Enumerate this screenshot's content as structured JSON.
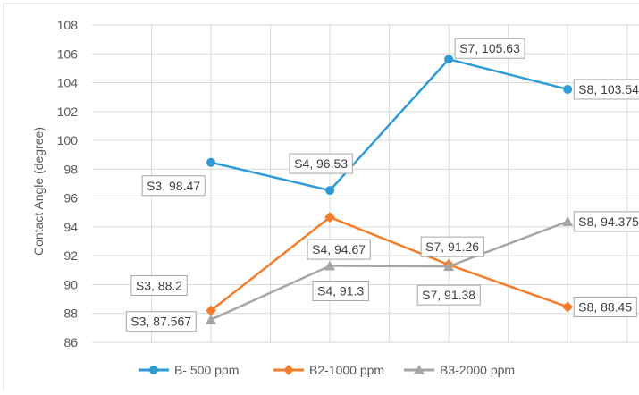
{
  "chart_data": {
    "type": "line",
    "title": "",
    "xlabel": "",
    "ylabel": "Contact Angle (degree)",
    "ylim": [
      86,
      108
    ],
    "y_ticks": [
      86,
      88,
      90,
      92,
      94,
      96,
      98,
      100,
      102,
      104,
      106,
      108
    ],
    "x_positions": [
      1,
      2,
      3,
      4
    ],
    "grid": true,
    "legend_position": "bottom",
    "series": [
      {
        "name": "B- 500 ppm",
        "color": "#2e9bd6",
        "marker": "circle",
        "x": [
          1,
          2,
          3,
          4
        ],
        "values": [
          98.47,
          96.53,
          105.63,
          103.54
        ],
        "labels": [
          "S3, 98.47",
          "S4, 96.53",
          "S7, 105.63",
          "S8, 103.54"
        ]
      },
      {
        "name": "B2-1000 ppm",
        "color": "#f47c2c",
        "marker": "diamond",
        "x": [
          1,
          2,
          3,
          4
        ],
        "values": [
          88.2,
          94.67,
          91.38,
          88.45
        ],
        "labels": [
          "S3, 88.2",
          "S4, 94.67",
          "S7, 91.38",
          "S8, 88.45"
        ]
      },
      {
        "name": "B3-2000 ppm",
        "color": "#a5a5a5",
        "marker": "triangle",
        "x": [
          1,
          2,
          3,
          4
        ],
        "values": [
          87.567,
          91.3,
          91.26,
          94.375
        ],
        "labels": [
          "S3, 87.567",
          "S4, 91.3",
          "S7, 91.26",
          "S8, 94.375"
        ]
      }
    ]
  }
}
